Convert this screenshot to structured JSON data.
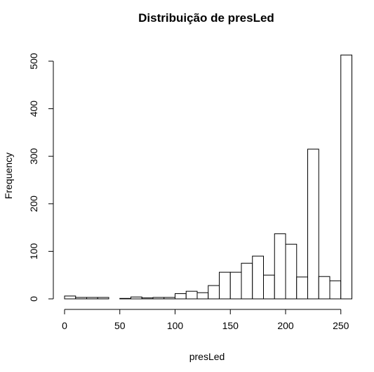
{
  "chart_data": {
    "type": "bar",
    "title": "Distribuição de presLed",
    "xlabel": "presLed",
    "ylabel": "Frequency",
    "bin_width": 10,
    "bins": [
      {
        "start": 0,
        "end": 10,
        "count": 6
      },
      {
        "start": 10,
        "end": 20,
        "count": 3
      },
      {
        "start": 20,
        "end": 30,
        "count": 3
      },
      {
        "start": 30,
        "end": 40,
        "count": 3
      },
      {
        "start": 40,
        "end": 50,
        "count": 0
      },
      {
        "start": 50,
        "end": 60,
        "count": 1
      },
      {
        "start": 60,
        "end": 70,
        "count": 4
      },
      {
        "start": 70,
        "end": 80,
        "count": 2
      },
      {
        "start": 80,
        "end": 90,
        "count": 3
      },
      {
        "start": 90,
        "end": 100,
        "count": 3
      },
      {
        "start": 100,
        "end": 110,
        "count": 11
      },
      {
        "start": 110,
        "end": 120,
        "count": 16
      },
      {
        "start": 120,
        "end": 130,
        "count": 13
      },
      {
        "start": 130,
        "end": 140,
        "count": 28
      },
      {
        "start": 140,
        "end": 150,
        "count": 56
      },
      {
        "start": 150,
        "end": 160,
        "count": 56
      },
      {
        "start": 160,
        "end": 170,
        "count": 75
      },
      {
        "start": 170,
        "end": 180,
        "count": 90
      },
      {
        "start": 180,
        "end": 190,
        "count": 50
      },
      {
        "start": 190,
        "end": 200,
        "count": 137
      },
      {
        "start": 200,
        "end": 210,
        "count": 115
      },
      {
        "start": 210,
        "end": 220,
        "count": 46
      },
      {
        "start": 220,
        "end": 230,
        "count": 315
      },
      {
        "start": 230,
        "end": 240,
        "count": 47
      },
      {
        "start": 240,
        "end": 250,
        "count": 38
      },
      {
        "start": 250,
        "end": 260,
        "count": 513
      }
    ],
    "xlim": [
      0,
      260
    ],
    "ylim": [
      0,
      513
    ],
    "x_ticks": [
      "0",
      "50",
      "100",
      "150",
      "200",
      "250"
    ],
    "y_ticks": [
      "0",
      "100",
      "200",
      "300",
      "400",
      "500"
    ],
    "grid": false,
    "legend": "none"
  }
}
